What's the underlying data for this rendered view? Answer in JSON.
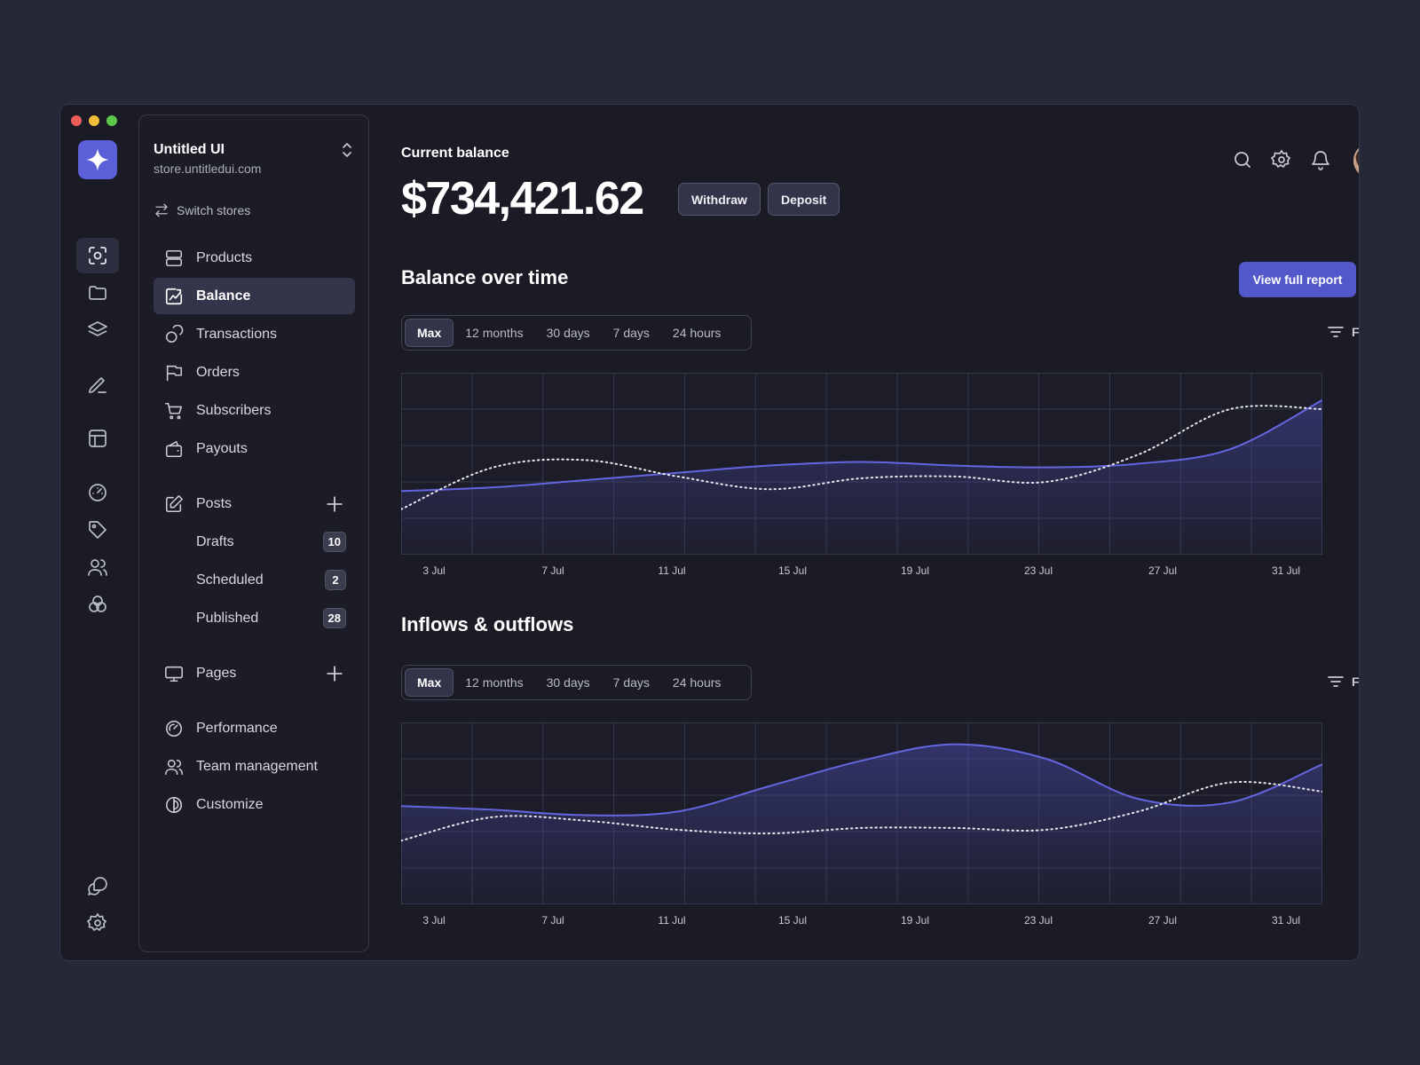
{
  "window": {
    "store_name": "Untitled UI",
    "store_url": "store.untitledui.com",
    "switch_label": "Switch stores"
  },
  "rail": {
    "icons": [
      "scan-icon",
      "folder-icon",
      "layers-icon",
      "pen-icon",
      "layout-icon",
      "speedometer-icon",
      "tag-icon",
      "users-icon",
      "circles-icon",
      "chat-icon",
      "settings-icon"
    ]
  },
  "sidebar": {
    "items": [
      {
        "label": "Products",
        "icon": "server-icon"
      },
      {
        "label": "Balance",
        "icon": "chart-icon",
        "active": true
      },
      {
        "label": "Transactions",
        "icon": "coins-icon"
      },
      {
        "label": "Orders",
        "icon": "flag-icon"
      },
      {
        "label": "Subscribers",
        "icon": "cart-icon"
      },
      {
        "label": "Payouts",
        "icon": "wallet-icon"
      }
    ],
    "posts": {
      "label": "Posts",
      "children": [
        {
          "label": "Drafts",
          "badge": "10"
        },
        {
          "label": "Scheduled",
          "badge": "2"
        },
        {
          "label": "Published",
          "badge": "28"
        }
      ]
    },
    "pages": {
      "label": "Pages"
    },
    "footer_items": [
      {
        "label": "Performance"
      },
      {
        "label": "Team management"
      },
      {
        "label": "Customize"
      }
    ]
  },
  "header": {
    "balance_label": "Current balance",
    "balance_value": "$734,421.62",
    "withdraw_label": "Withdraw",
    "deposit_label": "Deposit"
  },
  "balance_section": {
    "title": "Balance over time",
    "report_label": "View full report",
    "filters_label": "Filters",
    "ranges": [
      "Max",
      "12 months",
      "30 days",
      "7 days",
      "24 hours"
    ],
    "active_range": "Max"
  },
  "flows_section": {
    "title": "Inflows & outflows",
    "filters_label": "Filters",
    "ranges": [
      "Max",
      "12 months",
      "30 days",
      "7 days",
      "24 hours"
    ],
    "active_range": "Max"
  },
  "colors": {
    "accent": "#5257c9",
    "line": "#6366e0",
    "background": "#1b1b26"
  },
  "chart_data": [
    {
      "type": "area",
      "x": [
        "3 Jul",
        "7 Jul",
        "11 Jul",
        "15 Jul",
        "19 Jul",
        "23 Jul",
        "27 Jul",
        "31 Jul"
      ],
      "grid": true,
      "ylim": [
        0,
        100
      ],
      "series": [
        {
          "style": "solid-area",
          "x": [
            0,
            3,
            6,
            9,
            12,
            15,
            18,
            21,
            24,
            27,
            30
          ],
          "values": [
            35,
            37,
            41,
            45,
            49,
            51,
            49,
            48,
            50,
            58,
            85
          ]
        },
        {
          "style": "dotted",
          "x": [
            0,
            3,
            6,
            9,
            12,
            15,
            18,
            21,
            24,
            27,
            30
          ],
          "values": [
            25,
            48,
            52,
            43,
            36,
            42,
            43,
            40,
            55,
            80,
            80
          ]
        }
      ]
    },
    {
      "type": "area",
      "x": [
        "3 Jul",
        "7 Jul",
        "11 Jul",
        "15 Jul",
        "19 Jul",
        "23 Jul",
        "27 Jul",
        "31 Jul"
      ],
      "grid": true,
      "ylim": [
        0,
        100
      ],
      "series": [
        {
          "style": "solid-area",
          "x": [
            0,
            3,
            6,
            9,
            12,
            15,
            18,
            21,
            24,
            27,
            30
          ],
          "values": [
            54,
            52,
            49,
            51,
            65,
            79,
            88,
            80,
            58,
            56,
            77
          ]
        },
        {
          "style": "dotted",
          "x": [
            0,
            3,
            6,
            9,
            12,
            15,
            18,
            21,
            24,
            27,
            30
          ],
          "values": [
            35,
            48,
            46,
            41,
            39,
            42,
            42,
            41,
            51,
            67,
            62
          ]
        }
      ]
    }
  ]
}
